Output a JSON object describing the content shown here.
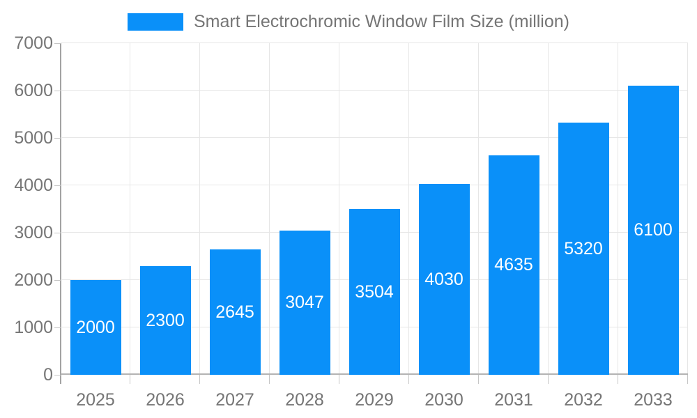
{
  "legend": {
    "label": "Smart Electrochromic Window Film Size (million)"
  },
  "chart_data": {
    "type": "bar",
    "title": "Smart Electrochromic Window Film Size (million)",
    "series_name": "Smart Electrochromic Window Film Size (million)",
    "categories": [
      "2025",
      "2026",
      "2027",
      "2028",
      "2029",
      "2030",
      "2031",
      "2032",
      "2033"
    ],
    "values": [
      2000,
      2300,
      2645,
      3047,
      3504,
      4030,
      4635,
      5320,
      6100
    ],
    "xlabel": "",
    "ylabel": "",
    "ylim": [
      0,
      7000
    ],
    "ytick_step": 1000,
    "y_tick_labels": [
      "0",
      "1000",
      "2000",
      "3000",
      "4000",
      "5000",
      "6000",
      "7000"
    ],
    "grid": true,
    "legend_position": "top-center",
    "bar_labels_visible": true
  },
  "colors": {
    "bar": "#0a90f9",
    "bar_label_text": "#ffffff",
    "grid_line": "#e6e6e6",
    "axis_line": "#a3a3a3",
    "zero_line": "#b3b3b3",
    "tick": "#c6c6c6",
    "axis_text": "#757575",
    "background": "#ffffff"
  }
}
